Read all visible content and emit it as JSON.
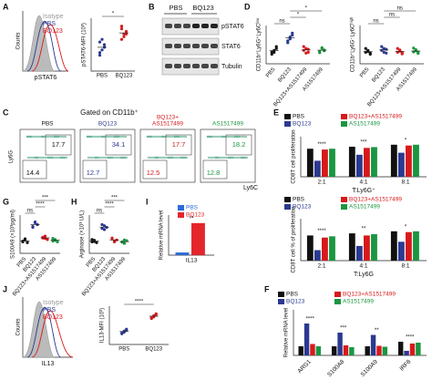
{
  "panels": {
    "A": {
      "label": "A",
      "legend": [
        "Isotype",
        "PBS",
        "BQ123"
      ],
      "x_label": "pSTAT6",
      "y_label": "Counts",
      "dot": {
        "y_label": "pSTAT6-MFI (10³)",
        "categories": [
          "PBS",
          "BQ123"
        ],
        "colors": [
          "#2b3990",
          "#d7191c"
        ],
        "ylim": [
          0,
          10
        ],
        "groups": [
          [
            3,
            4,
            5,
            5.5,
            6,
            4.5,
            3.5
          ],
          [
            6,
            7,
            7.5,
            8,
            6.5,
            7,
            8.5
          ]
        ],
        "sigs": [
          "*"
        ]
      }
    },
    "B": {
      "label": "B",
      "lanes": [
        "PBS",
        "BQ123"
      ],
      "rows": [
        "pSTAT6",
        "STAT6",
        "Tubulin"
      ]
    },
    "D": {
      "label": "D",
      "plots": [
        {
          "y_label": "CD11b⁺Ly6G⁺Ly6Cˡᵒʷ",
          "categories": [
            "PBS",
            "BQ123",
            "BQ123+AS1517499",
            "AS1517499"
          ],
          "colors": [
            "#111111",
            "#2b3990",
            "#d7191c",
            "#1a9641"
          ],
          "ylim": [
            0,
            10
          ],
          "groups": [
            [
              3,
              3.5,
              4,
              2.5,
              3,
              4.5
            ],
            [
              6,
              7,
              8,
              5.5,
              6.5,
              7.5
            ],
            [
              3.5,
              4,
              3,
              4.5,
              2.8,
              3.8
            ],
            [
              3.2,
              4,
              3.6,
              2.9,
              4.2,
              3.4
            ]
          ],
          "sigs": [
            "ns",
            "*",
            "*"
          ]
        },
        {
          "y_label": "CD11b⁺Ly6G⁻Ly6Cʰⁱᵍʰ",
          "categories": [
            "PBS",
            "BQ123",
            "BQ123+AS1517499",
            "AS1517499"
          ],
          "colors": [
            "#111111",
            "#2b3990",
            "#d7191c",
            "#1a9641"
          ],
          "ylim": [
            0,
            10
          ],
          "groups": [
            [
              3,
              3.5,
              2.5,
              4,
              3.2,
              2.8
            ],
            [
              3.5,
              4,
              2.8,
              4.5,
              3,
              3.8
            ],
            [
              3,
              3.6,
              2.6,
              4,
              3.3,
              2.9
            ],
            [
              3.1,
              3.7,
              2.7,
              4.1,
              3.4,
              3
            ]
          ],
          "sigs": [
            "ns",
            "ns",
            "ns"
          ]
        }
      ]
    },
    "C": {
      "label": "C",
      "title": "Gated on CD11b⁺",
      "x_label": "Ly6C",
      "y_label": "Ly6G",
      "plots": [
        {
          "name": "PBS",
          "color": "#111111",
          "upper": "17.7",
          "lower": "14.4"
        },
        {
          "name": "BQ123",
          "color": "#2b3990",
          "upper": "34.1",
          "lower": "12.7"
        },
        {
          "name": "BQ123+\nAS1517499",
          "color": "#d7191c",
          "upper": "17.7",
          "lower": "12.5"
        },
        {
          "name": "AS1517499",
          "color": "#1a9641",
          "upper": "18.2",
          "lower": "12.8"
        }
      ]
    },
    "E": {
      "label": "E",
      "charts": [
        {
          "y_label": "CD8T cell proliferation",
          "x_label": "T:Ly6G⁺",
          "groups": [
            "2:1",
            "4:1",
            "8:1"
          ],
          "ylim": [
            0,
            100
          ],
          "sigs": [
            "****",
            "***",
            "*"
          ],
          "series": [
            {
              "name": "PBS",
              "color": "#111111",
              "values": [
                70,
                75,
                80
              ]
            },
            {
              "name": "BQ123",
              "color": "#2b3990",
              "values": [
                40,
                55,
                60
              ]
            },
            {
              "name": "BQ123+AS1517499",
              "color": "#d7191c",
              "values": [
                68,
                72,
                78
              ]
            },
            {
              "name": "AS1517499",
              "color": "#1a9641",
              "values": [
                70,
                74,
                80
              ]
            }
          ]
        },
        {
          "y_label": "CD8T cell % of proliferation",
          "x_label": "T:Ly6G",
          "groups": [
            "2:1",
            "4:1",
            "8:1"
          ],
          "ylim": [
            0,
            100
          ],
          "sigs": [
            "****",
            "**",
            "*"
          ],
          "series": [
            {
              "name": "PBS",
              "color": "#111111",
              "values": [
                60,
                65,
                70
              ]
            },
            {
              "name": "BQ123",
              "color": "#2b3990",
              "values": [
                25,
                35,
                45
              ]
            },
            {
              "name": "BQ123+AS1517499",
              "color": "#d7191c",
              "values": [
                55,
                60,
                68
              ]
            },
            {
              "name": "AS1517499",
              "color": "#1a9641",
              "values": [
                58,
                63,
                70
              ]
            }
          ]
        }
      ]
    },
    "G": {
      "label": "G",
      "dot": {
        "y_label": "S100A9 (×10³pg/ml)",
        "categories": [
          "PBS",
          "BQ123",
          "BQ123+AS1517499",
          "AS1517499"
        ],
        "colors": [
          "#111111",
          "#2b3990",
          "#d7191c",
          "#1a9641"
        ],
        "ylim": [
          0,
          10
        ],
        "groups": [
          [
            3,
            3.5,
            2.8,
            3.2,
            3.8
          ],
          [
            7,
            8,
            7.5,
            6.8,
            8.2
          ],
          [
            4,
            4.5,
            3.6,
            4.2,
            3.9
          ],
          [
            3.2,
            3.6,
            3,
            3.9,
            3.4
          ]
        ],
        "sigs": [
          "ns",
          "****",
          "***"
        ]
      }
    },
    "H": {
      "label": "H",
      "dot": {
        "y_label": "Arginase (×10³ U/L)",
        "categories": [
          "PBS",
          "BQ123",
          "BQ123+AS1517499",
          "AS1517499"
        ],
        "colors": [
          "#111111",
          "#2b3990",
          "#d7191c",
          "#1a9641"
        ],
        "ylim": [
          0,
          10
        ],
        "groups": [
          [
            3,
            3.4,
            2.8,
            3.6,
            3.1
          ],
          [
            6.5,
            7.2,
            6.8,
            7.5,
            6.2
          ],
          [
            3.8,
            3.2,
            3.5,
            4,
            3
          ],
          [
            3,
            2.6,
            3.3,
            2.9,
            3.5
          ]
        ],
        "sigs": [
          "ns",
          "****",
          "***"
        ]
      }
    },
    "I": {
      "label": "I",
      "y_label": "Relative mRNA level",
      "groups": [
        "IL13"
      ],
      "ylim": [
        0,
        15
      ],
      "sigs": [
        "**"
      ],
      "series": [
        {
          "name": "PBS",
          "color": "#2b6cd4",
          "values": [
            1
          ]
        },
        {
          "name": "BQ123",
          "color": "#e4252b",
          "values": [
            12
          ]
        }
      ]
    },
    "J": {
      "label": "J",
      "legend": [
        "Isotype",
        "PBS",
        "BQ123"
      ],
      "x_label": "IL13",
      "y_label": "Counts",
      "dot": {
        "y_label": "IL13-MFI (10³)",
        "categories": [
          "PBS",
          "BQ123"
        ],
        "colors": [
          "#2b3990",
          "#d7191c"
        ],
        "ylim": [
          0,
          10
        ],
        "groups": [
          [
            3,
            3.5,
            4,
            2.8,
            3.2,
            3.8
          ],
          [
            7,
            7.5,
            8,
            6.8,
            7.2,
            7.8
          ]
        ],
        "sigs": [
          "****"
        ]
      }
    },
    "F": {
      "label": "F",
      "y_label": "Relative mRNA level",
      "groups": [
        "ARG1",
        "S100A8",
        "S100A9",
        "IRF8"
      ],
      "ylim": [
        0,
        10
      ],
      "sigs": [
        "****",
        "***",
        "**",
        "****"
      ],
      "series": [
        {
          "name": "PBS",
          "color": "#111111",
          "values": [
            2,
            2,
            2,
            3
          ]
        },
        {
          "name": "BQ123",
          "color": "#2b3990",
          "values": [
            7,
            5,
            4.5,
            1
          ]
        },
        {
          "name": "BQ123+AS1517499",
          "color": "#d7191c",
          "values": [
            2.5,
            2.2,
            2.1,
            2.6
          ]
        },
        {
          "name": "AS1517499",
          "color": "#1a9641",
          "values": [
            2,
            1.8,
            1.9,
            2.8
          ]
        }
      ]
    }
  }
}
